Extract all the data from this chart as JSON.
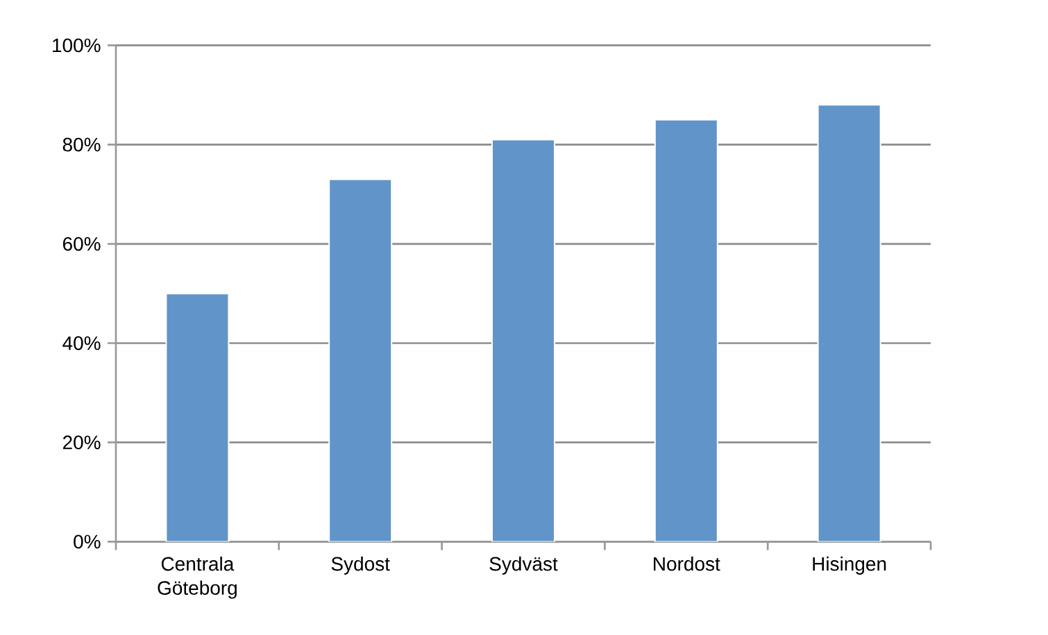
{
  "chart_data": {
    "type": "bar",
    "categories": [
      "Centrala Göteborg",
      "Sydost",
      "Sydväst",
      "Nordost",
      "Hisingen"
    ],
    "values": [
      50,
      73,
      81,
      85,
      88
    ],
    "color": "#6195c9",
    "ylim": [
      0,
      100
    ],
    "yticks": [
      {
        "value": 0,
        "label": "0%"
      },
      {
        "value": 20,
        "label": "20%"
      },
      {
        "value": 40,
        "label": "40%"
      },
      {
        "value": 60,
        "label": "60%"
      },
      {
        "value": 80,
        "label": "80%"
      },
      {
        "value": 100,
        "label": "100%"
      }
    ],
    "grid": "y"
  }
}
